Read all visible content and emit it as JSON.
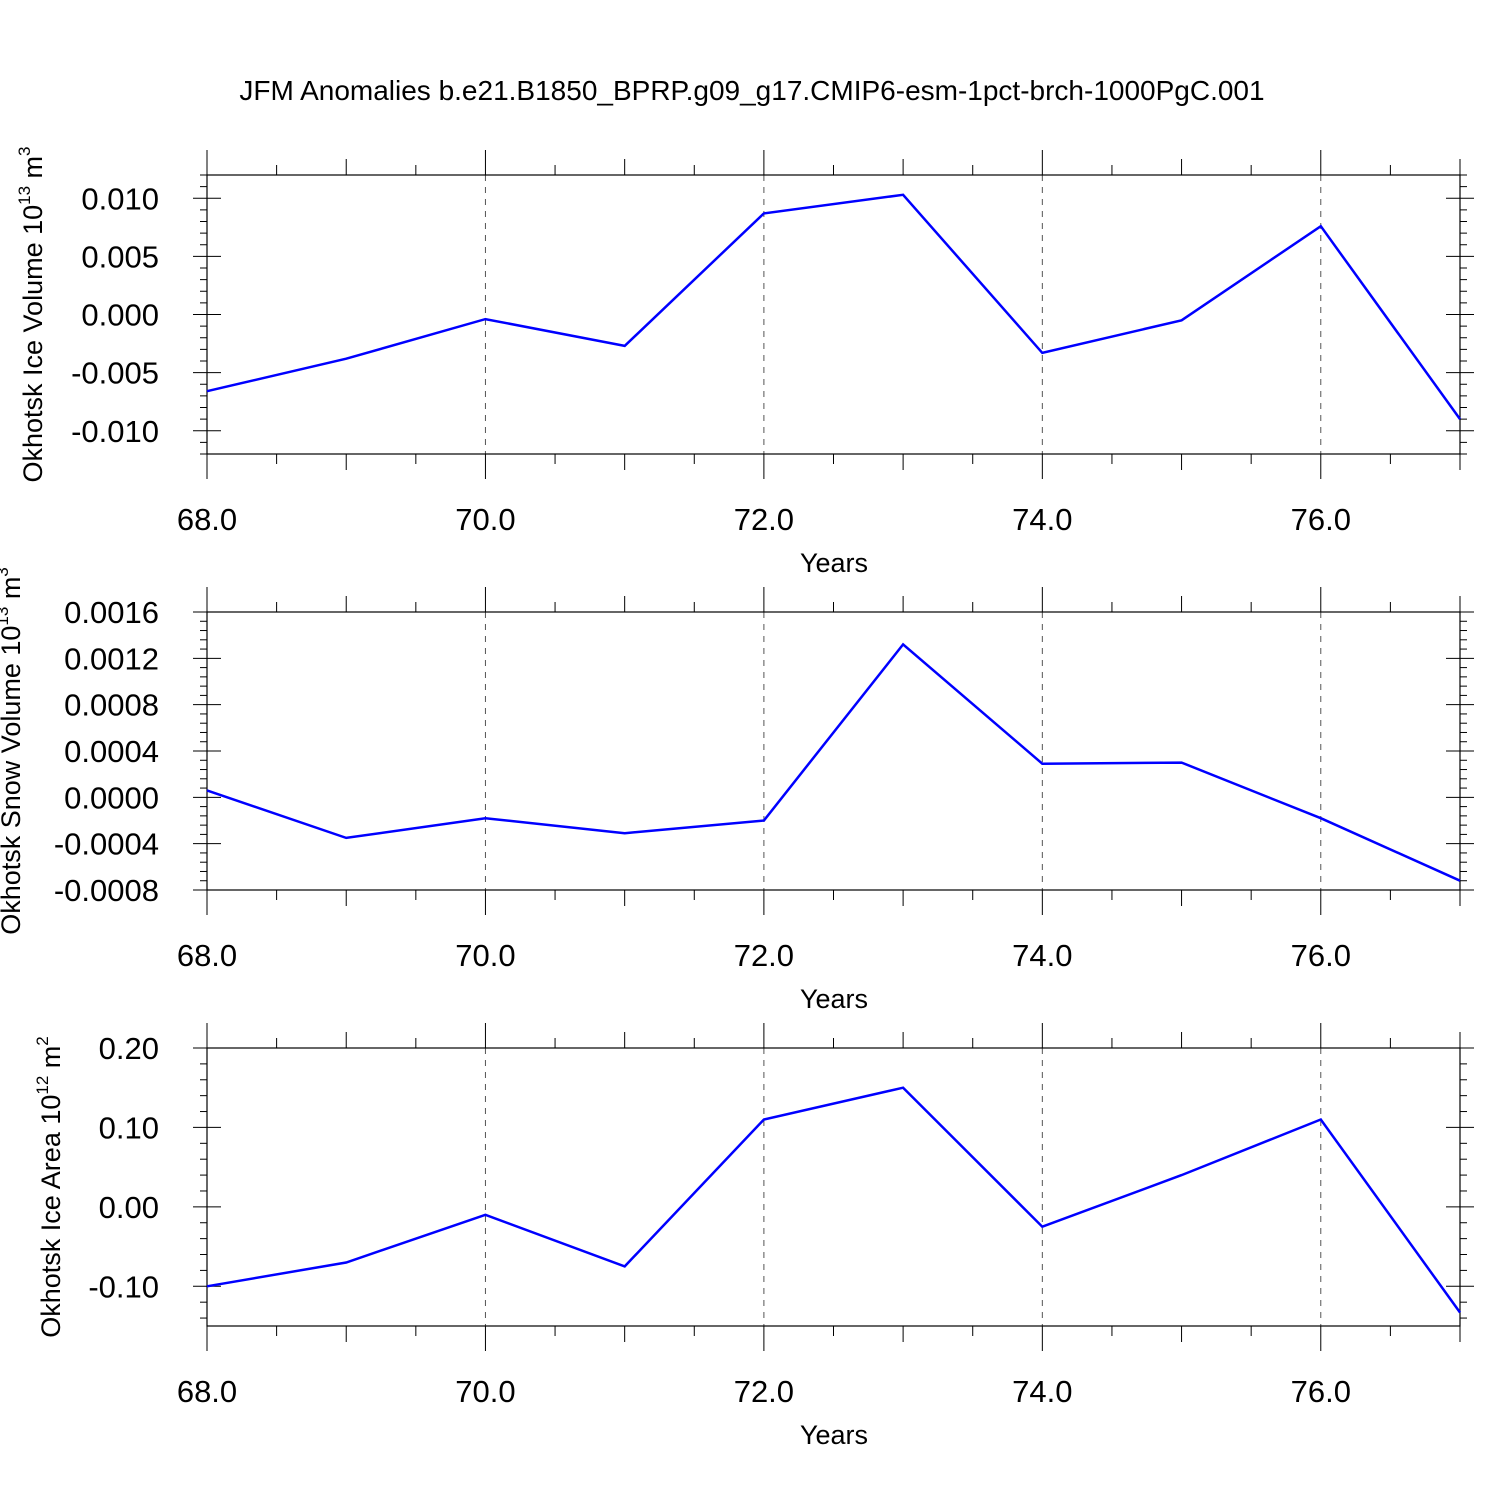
{
  "figure_title": "JFM Anomalies b.e21.B1850_BPRP.g09_g17.CMIP6-esm-1pct-brch-1000PgC.001",
  "line_color": "#0000ff",
  "chart_data": [
    {
      "type": "line",
      "xlabel": "Years",
      "ylabel": {
        "main": "Okhotsk Ice Volume 10",
        "exp": "13",
        "unit": " m",
        "unit_exp": "3"
      },
      "xlim": [
        68,
        77
      ],
      "ylim": [
        -0.012,
        0.012
      ],
      "x_ticks": [
        68,
        70,
        72,
        74,
        76
      ],
      "x_tick_labels": [
        "68.0",
        "70.0",
        "72.0",
        "74.0",
        "76.0"
      ],
      "y_ticks": [
        -0.01,
        -0.005,
        0,
        0.005,
        0.01
      ],
      "y_tick_labels": [
        "-0.010",
        "-0.005",
        "0.000",
        "0.005",
        "0.010"
      ],
      "grid": "dashed vertical at major x ticks",
      "series": [
        {
          "x": [
            68,
            69,
            70,
            71,
            72,
            73,
            74,
            75,
            76,
            77
          ],
          "y": [
            -0.0066,
            -0.0038,
            -0.0004,
            -0.0027,
            0.0087,
            0.0103,
            -0.0033,
            -0.0005,
            0.0076,
            -0.009
          ]
        }
      ]
    },
    {
      "type": "line",
      "xlabel": "Years",
      "ylabel": {
        "main": "Okhotsk Snow Volume 10",
        "exp": "13",
        "unit": " m",
        "unit_exp": "3"
      },
      "xlim": [
        68,
        77
      ],
      "ylim": [
        -0.0008,
        0.0016
      ],
      "x_ticks": [
        68,
        70,
        72,
        74,
        76
      ],
      "x_tick_labels": [
        "68.0",
        "70.0",
        "72.0",
        "74.0",
        "76.0"
      ],
      "y_ticks": [
        -0.0008,
        -0.0004,
        0,
        0.0004,
        0.0008,
        0.0012,
        0.0016
      ],
      "y_tick_labels": [
        "-0.0008",
        "-0.0004",
        "0.0000",
        "0.0004",
        "0.0008",
        "0.0012",
        "0.0016"
      ],
      "grid": "dashed vertical at major x ticks",
      "series": [
        {
          "x": [
            68,
            69,
            70,
            71,
            72,
            73,
            74,
            75,
            76,
            77
          ],
          "y": [
            6e-05,
            -0.00035,
            -0.00018,
            -0.00031,
            -0.0002,
            0.00132,
            0.00029,
            0.0003,
            -0.00018,
            -0.00072
          ]
        }
      ]
    },
    {
      "type": "line",
      "xlabel": "Years",
      "ylabel": {
        "main": "Okhotsk Ice Area 10",
        "exp": "12",
        "unit": " m",
        "unit_exp": "2"
      },
      "xlim": [
        68,
        77
      ],
      "ylim": [
        -0.15,
        0.2
      ],
      "x_ticks": [
        68,
        70,
        72,
        74,
        76
      ],
      "x_tick_labels": [
        "68.0",
        "70.0",
        "72.0",
        "74.0",
        "76.0"
      ],
      "y_ticks": [
        -0.1,
        0,
        0.1,
        0.2
      ],
      "y_tick_labels": [
        "-0.10",
        "0.00",
        "0.10",
        "0.20"
      ],
      "grid": "dashed vertical at major x ticks",
      "series": [
        {
          "x": [
            68,
            69,
            70,
            71,
            72,
            73,
            74,
            75,
            76,
            77
          ],
          "y": [
            -0.1,
            -0.07,
            -0.01,
            -0.075,
            0.11,
            0.15,
            -0.025,
            0.04,
            0.11,
            -0.133
          ]
        }
      ]
    }
  ]
}
